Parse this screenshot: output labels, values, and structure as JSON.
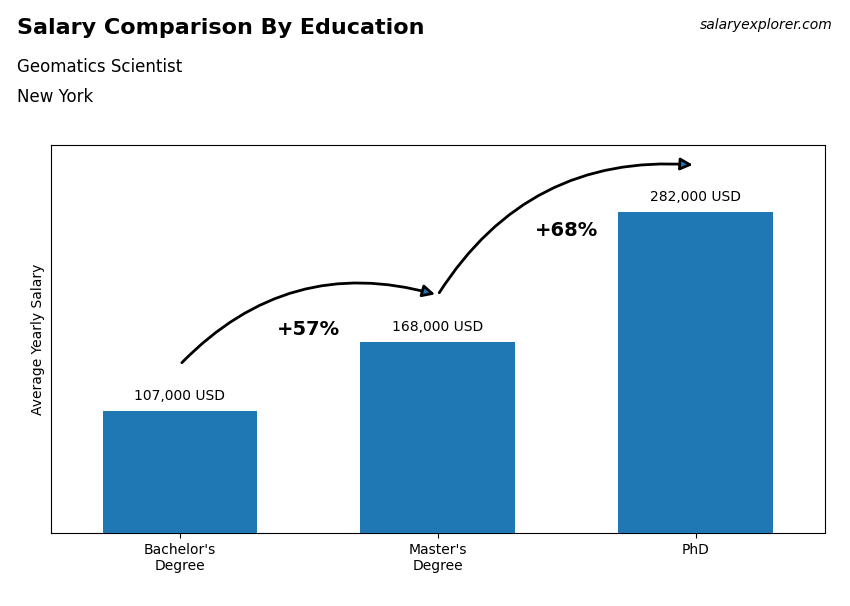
{
  "chart_data": {
    "type": "bar",
    "title": "Salary Comparison By Education",
    "subtitle": [
      "Geomatics Scientist",
      "New York"
    ],
    "watermark": [
      "salary",
      "explorer",
      ".com"
    ],
    "y_label": "Average Yearly Salary",
    "categories": [
      "Bachelor's\nDegree",
      "Master's\nDegree",
      "PhD"
    ],
    "values": [
      107000,
      168000,
      282000
    ],
    "value_labels": [
      "107,000 USD",
      "168,000 USD",
      "282,000 USD"
    ],
    "data_labels": true,
    "annotations": [
      "+57%",
      "+68%"
    ],
    "ylim": [
      0,
      340000
    ],
    "tick_labels": "x"
  }
}
